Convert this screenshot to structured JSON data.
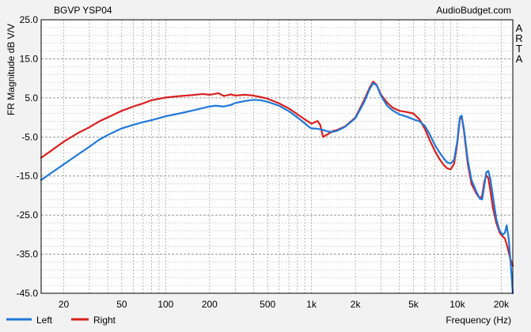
{
  "header": {
    "title": "BGVP YSP04",
    "brand": "AudioBudget.com",
    "side_letters": [
      "A",
      "R",
      "T",
      "A"
    ]
  },
  "chart_data": {
    "type": "line",
    "title": "BGVP YSP04",
    "xlabel": "Frequency (Hz)",
    "ylabel": "FR Magnitude dB V/V",
    "x_scale": "log",
    "xlim": [
      14,
      24000
    ],
    "ylim": [
      -45,
      25
    ],
    "grid": true,
    "legend_position": "bottom-left",
    "y_ticks": [
      25.0,
      15.0,
      5.0,
      -5.0,
      -15.0,
      -25.0,
      -35.0,
      -45.0
    ],
    "y_tick_labels": [
      "25.0",
      "15.0",
      "5.0",
      "-5.0",
      "-15.0",
      "-25.0",
      "-35.0",
      "-45.0"
    ],
    "x_ticks": [
      20,
      50,
      100,
      200,
      500,
      1000,
      2000,
      5000,
      10000,
      20000
    ],
    "x_tick_labels": [
      "20",
      "50",
      "100",
      "200",
      "500",
      "1k",
      "2k",
      "5k",
      "10k",
      "20k"
    ],
    "series": [
      {
        "name": "Left",
        "color": "#1f78d8",
        "points": [
          [
            14,
            -16.0
          ],
          [
            16,
            -14.5
          ],
          [
            20,
            -12.0
          ],
          [
            25,
            -9.5
          ],
          [
            30,
            -7.5
          ],
          [
            35,
            -5.7
          ],
          [
            40,
            -4.5
          ],
          [
            50,
            -2.8
          ],
          [
            60,
            -1.9
          ],
          [
            70,
            -1.2
          ],
          [
            80,
            -0.7
          ],
          [
            100,
            0.3
          ],
          [
            120,
            0.9
          ],
          [
            150,
            1.7
          ],
          [
            180,
            2.4
          ],
          [
            200,
            2.8
          ],
          [
            220,
            3.0
          ],
          [
            250,
            2.8
          ],
          [
            280,
            3.2
          ],
          [
            300,
            3.7
          ],
          [
            350,
            4.2
          ],
          [
            400,
            4.5
          ],
          [
            450,
            4.4
          ],
          [
            500,
            4.0
          ],
          [
            600,
            3.0
          ],
          [
            700,
            1.6
          ],
          [
            800,
            0.0
          ],
          [
            900,
            -1.5
          ],
          [
            950,
            -2.3
          ],
          [
            1000,
            -2.8
          ],
          [
            1100,
            -2.9
          ],
          [
            1200,
            -3.2
          ],
          [
            1300,
            -3.6
          ],
          [
            1400,
            -3.7
          ],
          [
            1500,
            -3.4
          ],
          [
            1700,
            -2.4
          ],
          [
            2000,
            -0.2
          ],
          [
            2300,
            4.0
          ],
          [
            2500,
            7.2
          ],
          [
            2650,
            8.8
          ],
          [
            2800,
            8.2
          ],
          [
            3000,
            5.5
          ],
          [
            3300,
            3.0
          ],
          [
            3600,
            1.8
          ],
          [
            4000,
            0.8
          ],
          [
            4500,
            0.2
          ],
          [
            5000,
            -0.5
          ],
          [
            5500,
            -1.0
          ],
          [
            6000,
            -2.2
          ],
          [
            6500,
            -4.5
          ],
          [
            7000,
            -7.0
          ],
          [
            7500,
            -8.8
          ],
          [
            8000,
            -10.3
          ],
          [
            8500,
            -11.5
          ],
          [
            9000,
            -11.8
          ],
          [
            9500,
            -10.8
          ],
          [
            10000,
            -6.0
          ],
          [
            10400,
            0.0
          ],
          [
            10700,
            0.5
          ],
          [
            11100,
            -3.0
          ],
          [
            11800,
            -11.0
          ],
          [
            12500,
            -16.0
          ],
          [
            13500,
            -19.0
          ],
          [
            14300,
            -20.8
          ],
          [
            14800,
            -21.0
          ],
          [
            15300,
            -17.5
          ],
          [
            15800,
            -14.0
          ],
          [
            16300,
            -13.7
          ],
          [
            16800,
            -15.5
          ],
          [
            17500,
            -20.0
          ],
          [
            18500,
            -26.0
          ],
          [
            19500,
            -29.0
          ],
          [
            20500,
            -30.0
          ],
          [
            21200,
            -29.5
          ],
          [
            21800,
            -27.6
          ],
          [
            22500,
            -31.0
          ],
          [
            23500,
            -40.0
          ],
          [
            24000,
            -45.0
          ]
        ]
      },
      {
        "name": "Right",
        "color": "#d91f1f",
        "points": [
          [
            14,
            -10.3
          ],
          [
            16,
            -8.8
          ],
          [
            20,
            -6.2
          ],
          [
            25,
            -4.0
          ],
          [
            30,
            -2.5
          ],
          [
            35,
            -1.0
          ],
          [
            40,
            0.0
          ],
          [
            50,
            1.7
          ],
          [
            60,
            2.8
          ],
          [
            70,
            3.6
          ],
          [
            80,
            4.4
          ],
          [
            100,
            5.1
          ],
          [
            120,
            5.4
          ],
          [
            150,
            5.7
          ],
          [
            180,
            6.0
          ],
          [
            200,
            5.8
          ],
          [
            230,
            6.2
          ],
          [
            250,
            5.5
          ],
          [
            280,
            5.9
          ],
          [
            300,
            5.6
          ],
          [
            350,
            5.8
          ],
          [
            400,
            5.6
          ],
          [
            450,
            5.2
          ],
          [
            500,
            4.8
          ],
          [
            600,
            3.6
          ],
          [
            700,
            2.3
          ],
          [
            800,
            0.8
          ],
          [
            900,
            -0.5
          ],
          [
            1000,
            -1.6
          ],
          [
            1100,
            -0.9
          ],
          [
            1150,
            -2.0
          ],
          [
            1200,
            -5.0
          ],
          [
            1250,
            -4.6
          ],
          [
            1400,
            -3.5
          ],
          [
            1500,
            -3.2
          ],
          [
            1700,
            -2.3
          ],
          [
            2000,
            0.0
          ],
          [
            2300,
            4.5
          ],
          [
            2500,
            7.6
          ],
          [
            2650,
            9.2
          ],
          [
            2800,
            8.3
          ],
          [
            3000,
            5.8
          ],
          [
            3300,
            3.8
          ],
          [
            3600,
            2.5
          ],
          [
            4000,
            1.7
          ],
          [
            4500,
            1.4
          ],
          [
            5000,
            1.0
          ],
          [
            5500,
            -0.5
          ],
          [
            6000,
            -3.0
          ],
          [
            6500,
            -6.0
          ],
          [
            7000,
            -8.5
          ],
          [
            7500,
            -10.5
          ],
          [
            8000,
            -12.0
          ],
          [
            8500,
            -13.0
          ],
          [
            9000,
            -13.3
          ],
          [
            9500,
            -11.8
          ],
          [
            10000,
            -6.5
          ],
          [
            10400,
            -0.5
          ],
          [
            10700,
            0.3
          ],
          [
            11100,
            -3.5
          ],
          [
            11800,
            -12.0
          ],
          [
            12500,
            -17.0
          ],
          [
            13500,
            -19.5
          ],
          [
            14300,
            -20.8
          ],
          [
            14800,
            -20.0
          ],
          [
            15300,
            -16.5
          ],
          [
            15800,
            -14.8
          ],
          [
            16300,
            -15.5
          ],
          [
            16800,
            -18.5
          ],
          [
            17500,
            -23.0
          ],
          [
            18500,
            -27.0
          ],
          [
            19500,
            -29.5
          ],
          [
            20500,
            -30.5
          ],
          [
            21200,
            -31.0
          ],
          [
            22000,
            -33.0
          ],
          [
            23000,
            -36.0
          ],
          [
            24000,
            -38.0
          ]
        ]
      }
    ]
  }
}
